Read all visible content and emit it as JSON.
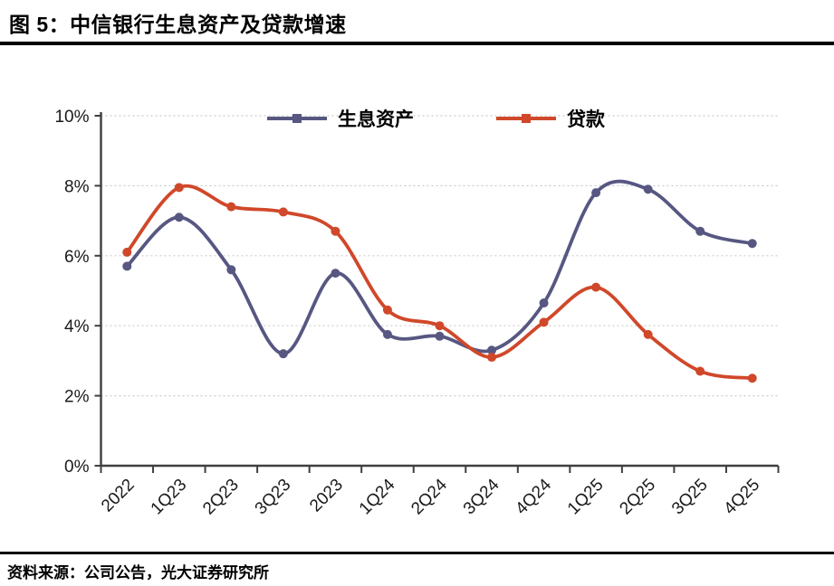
{
  "figure": {
    "title": "图 5：中信银行生息资产及贷款增速",
    "source": "资料来源：公司公告，光大证券研究所"
  },
  "chart_data": {
    "type": "line",
    "smooth": true,
    "title": "中信银行生息资产及贷款增速",
    "categories": [
      "2022",
      "1Q23",
      "2Q23",
      "3Q23",
      "2023",
      "1Q24",
      "2Q24",
      "3Q24",
      "4Q24",
      "1Q25",
      "2Q25",
      "3Q25",
      "4Q25"
    ],
    "series": [
      {
        "name": "生息资产",
        "color": "#575782",
        "values": [
          5.7,
          7.1,
          5.6,
          3.2,
          5.5,
          3.75,
          3.7,
          3.3,
          4.65,
          7.8,
          7.9,
          6.7,
          6.35
        ]
      },
      {
        "name": "贷款",
        "color": "#D0482A",
        "values": [
          6.1,
          7.95,
          7.4,
          7.25,
          6.7,
          4.45,
          4.0,
          3.1,
          4.1,
          5.1,
          3.75,
          2.7,
          2.5
        ]
      }
    ],
    "xlabel": "",
    "ylabel": "",
    "ylim": [
      0,
      10
    ],
    "yticks": [
      0,
      2,
      4,
      6,
      8,
      10
    ],
    "ytick_suffix": "%",
    "grid": "horizontal-dashed",
    "legend_position": "top-center",
    "marker": "circle",
    "axis_color": "#3F3F3F",
    "grid_color": "#CBCBCB",
    "text_color": "#1A1A1A"
  }
}
